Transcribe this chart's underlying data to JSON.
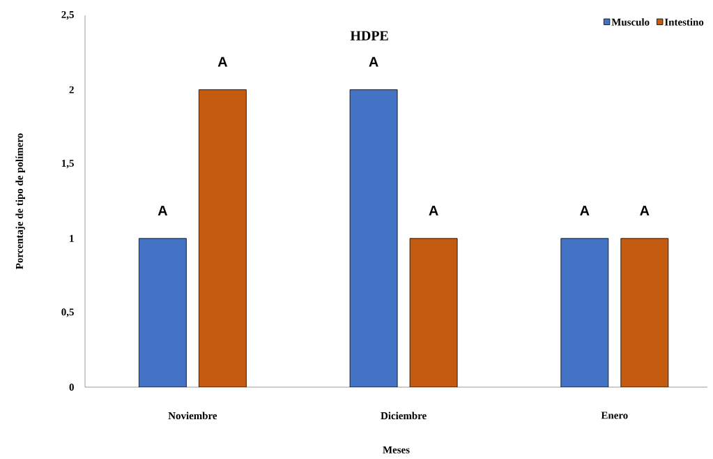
{
  "chart_data": {
    "type": "bar",
    "title": "HDPE",
    "xlabel": "Meses",
    "ylabel": "Porcentaje de tipo de polímero",
    "categories": [
      "Noviembre",
      "Diciembre",
      "Enero"
    ],
    "series": [
      {
        "name": "Musculo",
        "color": "#4472c4",
        "values": [
          1,
          2,
          1
        ]
      },
      {
        "name": "Intestino",
        "color": "#c55a11",
        "values": [
          2,
          1,
          1
        ]
      }
    ],
    "ylim": [
      0,
      2.5
    ],
    "yticks": [
      0,
      {
        "value": 0.5,
        "label": "0,5"
      },
      1,
      {
        "value": 1.5,
        "label": "1,5"
      },
      2,
      {
        "value": 2.5,
        "label": "2,5"
      }
    ],
    "annotations": [
      "A",
      "A",
      "A",
      "A",
      "A",
      "A"
    ],
    "legend": "top right",
    "grid": false
  }
}
